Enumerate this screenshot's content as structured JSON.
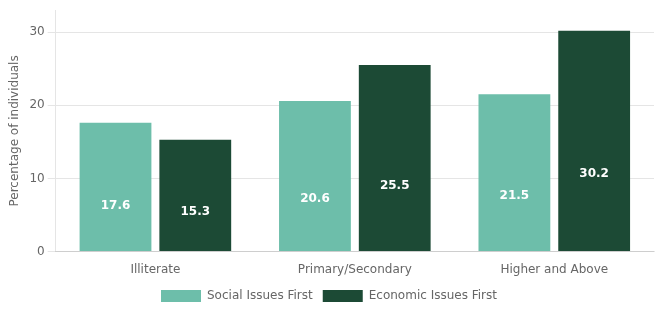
{
  "chart_data": {
    "type": "bar",
    "categories": [
      "Illiterate",
      "Primary/Secondary",
      "Higher and Above"
    ],
    "series": [
      {
        "name": "Social Issues First",
        "color": "#6DBEAA",
        "values": [
          17.6,
          20.6,
          21.5
        ]
      },
      {
        "name": "Economic Issues First",
        "color": "#1C4A35",
        "values": [
          15.3,
          25.5,
          30.2
        ]
      }
    ],
    "ylabel": "Percentage of individuals",
    "ylim": [
      0,
      33
    ],
    "yticks": [
      0,
      10,
      20,
      30
    ],
    "grid": true,
    "legend": "bottom",
    "data_labels": true
  }
}
